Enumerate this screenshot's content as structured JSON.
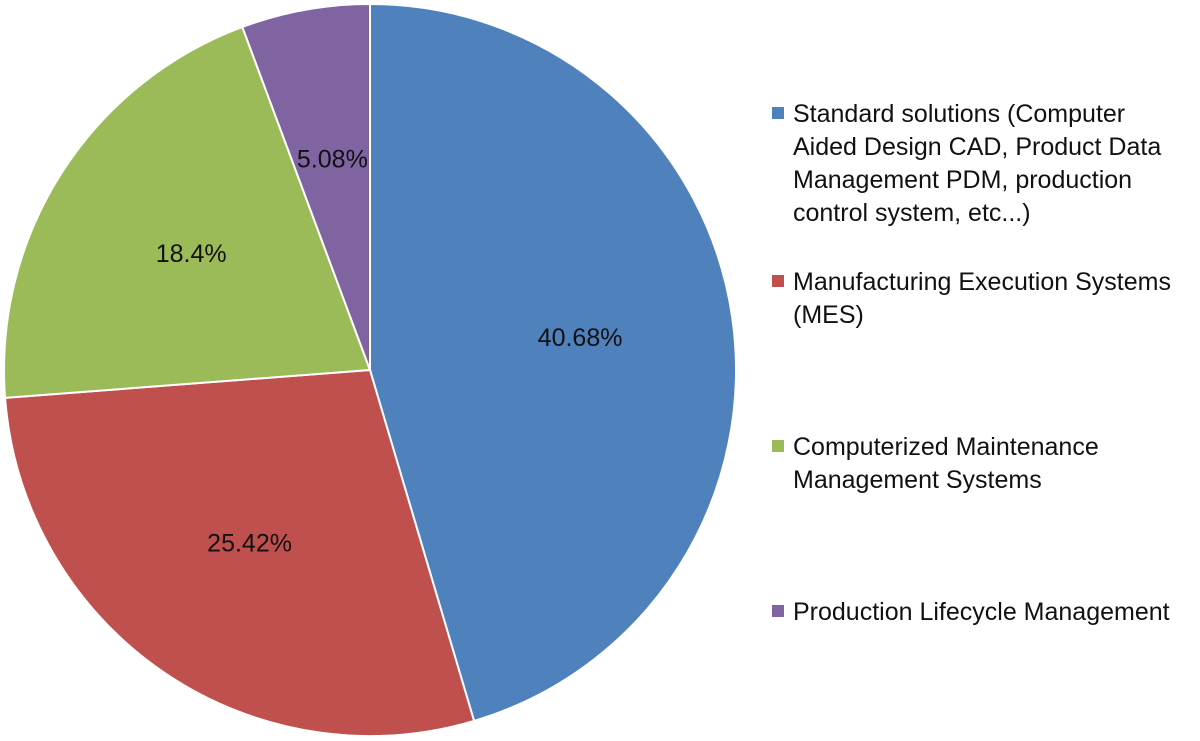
{
  "chart_data": {
    "type": "pie",
    "slices": [
      {
        "label": "Standard solutions (Computer Aided Design CAD, Product Data Management PDM, production control system, etc...)",
        "value": 40.68,
        "value_label": "40.68%",
        "color": "#4F81BD"
      },
      {
        "label": "Manufacturing Execution Systems (MES)",
        "value": 25.42,
        "value_label": "25.42%",
        "color": "#C0504D"
      },
      {
        "label": "Computerized Maintenance Management Systems",
        "value": 18.4,
        "value_label": "18.4%",
        "color": "#9BBB59"
      },
      {
        "label": "Production Lifecycle Management",
        "value": 5.08,
        "value_label": "5.08%",
        "color": "#8064A2"
      }
    ],
    "legend_position": "right"
  }
}
